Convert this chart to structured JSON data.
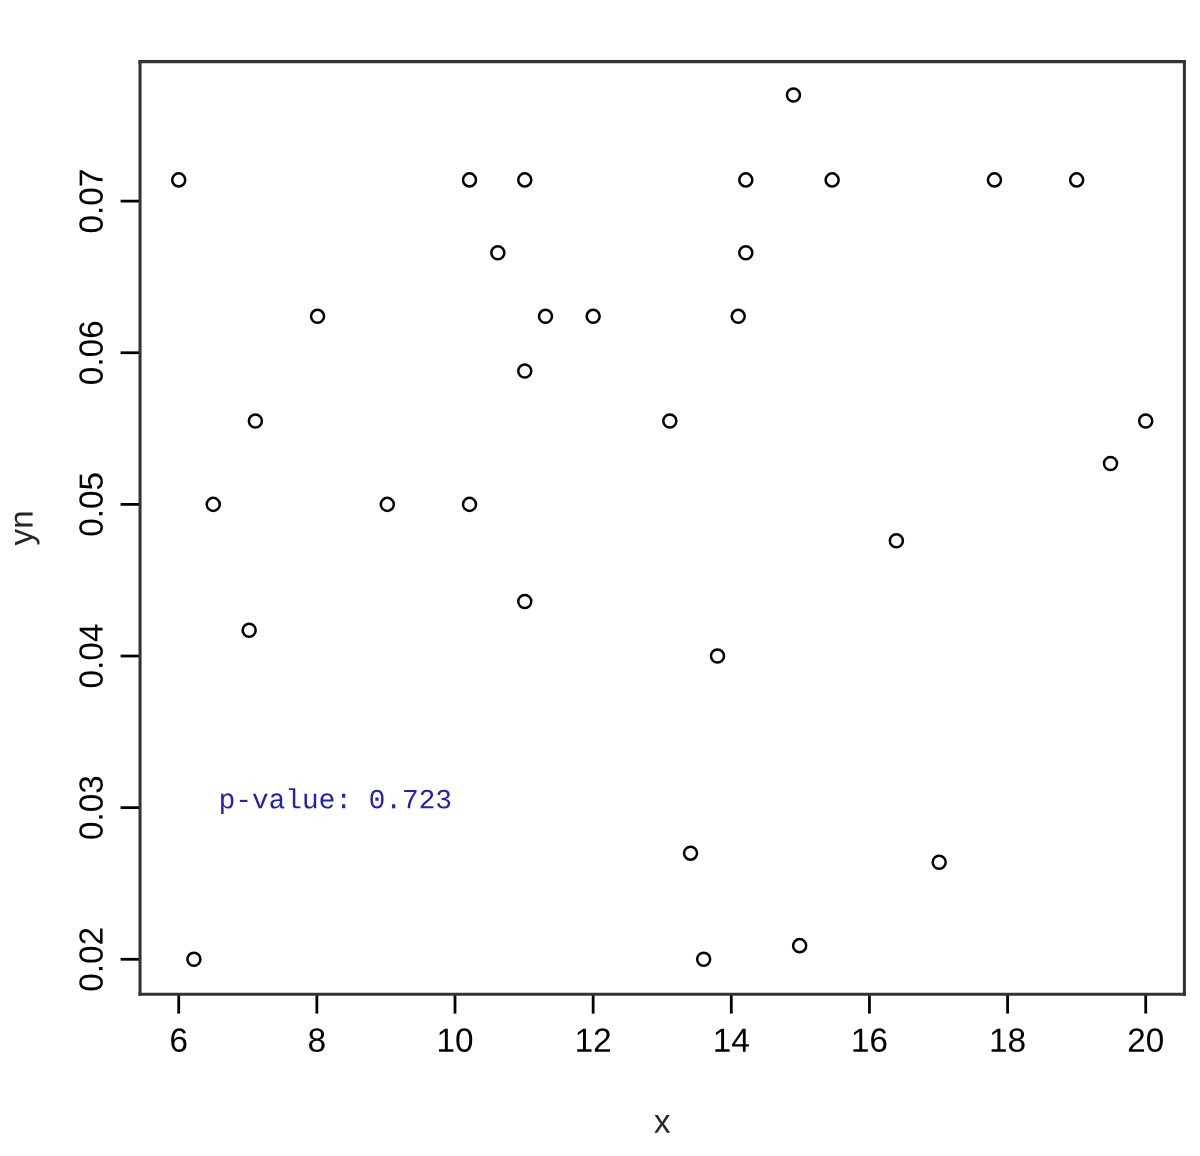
{
  "chart_data": {
    "type": "scatter",
    "xlabel": "x",
    "ylabel": "yn",
    "x": [
      6,
      6.22,
      6.5,
      7.02,
      7.11,
      8.01,
      9.02,
      10.21,
      10.21,
      10.62,
      11.01,
      11.01,
      11.01,
      11.31,
      12.0,
      13.11,
      13.41,
      13.6,
      13.8,
      14.1,
      14.21,
      14.21,
      14.9,
      14.99,
      15.46,
      16.39,
      17.01,
      17.81,
      19.0,
      19.49,
      20
    ],
    "values": [
      0.0714,
      0.02,
      0.05,
      0.0417,
      0.0555,
      0.0624,
      0.05,
      0.0714,
      0.05,
      0.0666,
      0.0714,
      0.0588,
      0.0436,
      0.0624,
      0.0624,
      0.0555,
      0.027,
      0.02,
      0.04,
      0.0624,
      0.0714,
      0.0666,
      0.077,
      0.0209,
      0.0714,
      0.0476,
      0.0264,
      0.0714,
      0.0714,
      0.0527,
      0.0555
    ],
    "color": "#000000",
    "marker": "circle",
    "xlim": [
      5.44,
      20.56
    ],
    "ylim": [
      0.0177,
      0.0792
    ],
    "xticks": [
      6,
      8,
      10,
      12,
      14,
      16,
      18,
      20
    ],
    "yticks": [
      0.02,
      0.03,
      0.04,
      0.05,
      0.06,
      0.07
    ],
    "grid": false,
    "legend": false,
    "annotations": [
      "p-value: 0.723"
    ]
  }
}
